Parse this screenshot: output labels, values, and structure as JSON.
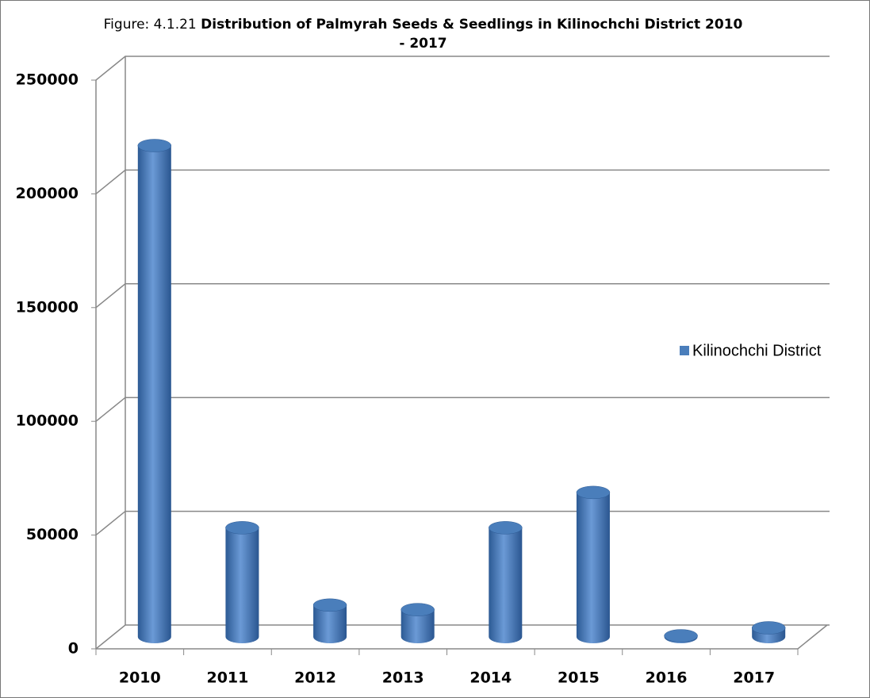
{
  "chart_data": {
    "type": "bar3d",
    "figure_label": "Figure: 4.1.21",
    "title": "Distribution of Palmyrah Seeds & Seedlings in Kilinochchi District 2010 - 2017",
    "categories": [
      "2010",
      "2011",
      "2012",
      "2013",
      "2014",
      "2015",
      "2016",
      "2017"
    ],
    "series": [
      {
        "name": "Kilinochchi District",
        "color": "#4a7ebb",
        "values": [
          216000,
          48000,
          14000,
          12000,
          48000,
          63500,
          500,
          4000
        ]
      }
    ],
    "ylim": [
      0,
      250000
    ],
    "yticks": [
      0,
      50000,
      100000,
      150000,
      200000,
      250000
    ],
    "grid": true,
    "legend": "right"
  }
}
